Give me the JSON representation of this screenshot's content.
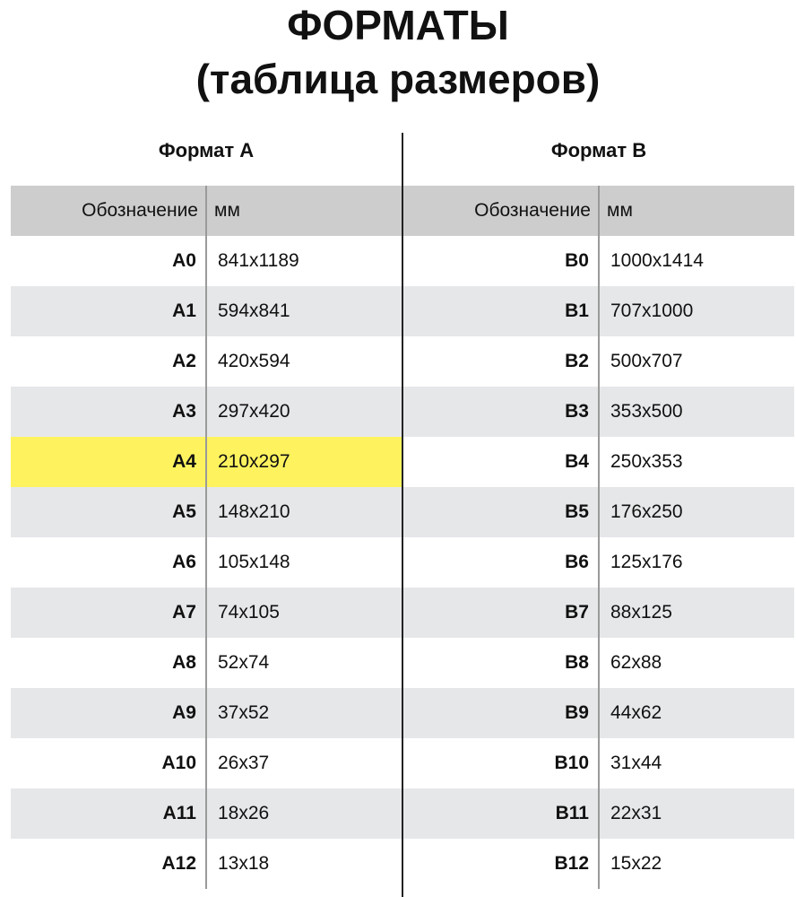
{
  "title": {
    "line1": "ФОРМАТЫ",
    "line2": "(таблица размеров)"
  },
  "highlight_color": "#fef35f",
  "tables": [
    {
      "heading": "Формат А",
      "columns": [
        "Обозначение",
        "мм"
      ],
      "highlighted": "A4",
      "rows": [
        [
          "A0",
          "841x1189"
        ],
        [
          "A1",
          "594x841"
        ],
        [
          "A2",
          "420x594"
        ],
        [
          "A3",
          "297x420"
        ],
        [
          "A4",
          "210x297"
        ],
        [
          "A5",
          "148x210"
        ],
        [
          "A6",
          "105x148"
        ],
        [
          "A7",
          "74x105"
        ],
        [
          "A8",
          "52x74"
        ],
        [
          "A9",
          "37x52"
        ],
        [
          "A10",
          "26x37"
        ],
        [
          "A11",
          "18x26"
        ],
        [
          "A12",
          "13x18"
        ]
      ]
    },
    {
      "heading": "Формат В",
      "columns": [
        "Обозначение",
        "мм"
      ],
      "highlighted": "",
      "rows": [
        [
          "B0",
          "1000x1414"
        ],
        [
          "B1",
          "707x1000"
        ],
        [
          "B2",
          "500x707"
        ],
        [
          "B3",
          "353x500"
        ],
        [
          "B4",
          "250x353"
        ],
        [
          "B5",
          "176x250"
        ],
        [
          "B6",
          "125x176"
        ],
        [
          "B7",
          "88x125"
        ],
        [
          "B8",
          "62x88"
        ],
        [
          "B9",
          "44x62"
        ],
        [
          "B10",
          "31x44"
        ],
        [
          "B11",
          "22x31"
        ],
        [
          "B12",
          "15x22"
        ]
      ]
    }
  ]
}
